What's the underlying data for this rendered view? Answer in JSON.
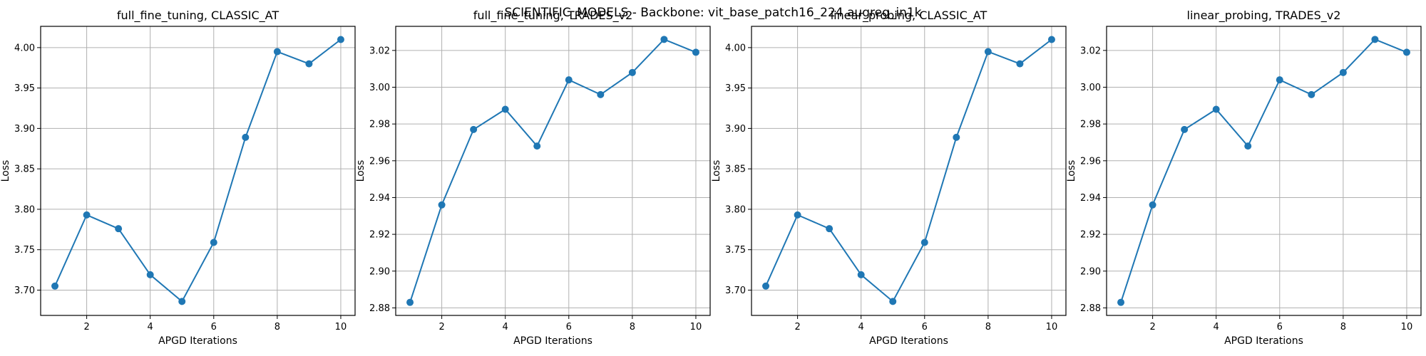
{
  "figure": {
    "suptitle": "SCIENTIFIC_MODELS - Backbone: vit_base_patch16_224.augreg_in1k"
  },
  "chart_data": [
    {
      "type": "line",
      "title": "full_fine_tuning, CLASSIC_AT",
      "xlabel": "APGD Iterations",
      "ylabel": "Loss",
      "x": [
        1,
        2,
        3,
        4,
        5,
        6,
        7,
        8,
        9,
        10
      ],
      "y": [
        3.705,
        3.793,
        3.776,
        3.719,
        3.686,
        3.759,
        3.889,
        3.995,
        3.98,
        4.01
      ],
      "xlim": [
        0.55,
        10.45
      ],
      "ylim": [
        3.6687,
        4.0263
      ],
      "xticks": [
        2,
        4,
        6,
        8,
        10
      ],
      "yticks": [
        3.7,
        3.75,
        3.8,
        3.85,
        3.9,
        3.95,
        4.0
      ],
      "ytick_labels": [
        "3.70",
        "3.75",
        "3.80",
        "3.85",
        "3.90",
        "3.95",
        "4.00"
      ],
      "grid": true,
      "color": "#1f77b4",
      "marker": "circle"
    },
    {
      "type": "line",
      "title": "full_fine_tuning, TRADES_v2",
      "xlabel": "APGD Iterations",
      "ylabel": "Loss",
      "x": [
        1,
        2,
        3,
        4,
        5,
        6,
        7,
        8,
        9,
        10
      ],
      "y": [
        2.883,
        2.936,
        2.977,
        2.988,
        2.968,
        3.004,
        2.996,
        3.008,
        3.026,
        3.019
      ],
      "xlim": [
        0.55,
        10.45
      ],
      "ylim": [
        2.8759,
        3.0331
      ],
      "xticks": [
        2,
        4,
        6,
        8,
        10
      ],
      "yticks": [
        2.88,
        2.9,
        2.92,
        2.94,
        2.96,
        2.98,
        3.0,
        3.02
      ],
      "ytick_labels": [
        "2.88",
        "2.90",
        "2.92",
        "2.94",
        "2.96",
        "2.98",
        "3.00",
        "3.02"
      ],
      "grid": true,
      "color": "#1f77b4",
      "marker": "circle"
    },
    {
      "type": "line",
      "title": "linear_probing, CLASSIC_AT",
      "xlabel": "APGD Iterations",
      "ylabel": "Loss",
      "x": [
        1,
        2,
        3,
        4,
        5,
        6,
        7,
        8,
        9,
        10
      ],
      "y": [
        3.705,
        3.793,
        3.776,
        3.719,
        3.686,
        3.759,
        3.889,
        3.995,
        3.98,
        4.01
      ],
      "xlim": [
        0.55,
        10.45
      ],
      "ylim": [
        3.6687,
        4.0263
      ],
      "xticks": [
        2,
        4,
        6,
        8,
        10
      ],
      "yticks": [
        3.7,
        3.75,
        3.8,
        3.85,
        3.9,
        3.95,
        4.0
      ],
      "ytick_labels": [
        "3.70",
        "3.75",
        "3.80",
        "3.85",
        "3.90",
        "3.95",
        "4.00"
      ],
      "grid": true,
      "color": "#1f77b4",
      "marker": "circle"
    },
    {
      "type": "line",
      "title": "linear_probing, TRADES_v2",
      "xlabel": "APGD Iterations",
      "ylabel": "Loss",
      "x": [
        1,
        2,
        3,
        4,
        5,
        6,
        7,
        8,
        9,
        10
      ],
      "y": [
        2.883,
        2.936,
        2.977,
        2.988,
        2.968,
        3.004,
        2.996,
        3.008,
        3.026,
        3.019
      ],
      "xlim": [
        0.55,
        10.45
      ],
      "ylim": [
        2.8759,
        3.0331
      ],
      "xticks": [
        2,
        4,
        6,
        8,
        10
      ],
      "yticks": [
        2.88,
        2.9,
        2.92,
        2.94,
        2.96,
        2.98,
        3.0,
        3.02
      ],
      "ytick_labels": [
        "2.88",
        "2.90",
        "2.92",
        "2.94",
        "2.96",
        "2.98",
        "3.00",
        "3.02"
      ],
      "grid": true,
      "color": "#1f77b4",
      "marker": "circle"
    }
  ]
}
